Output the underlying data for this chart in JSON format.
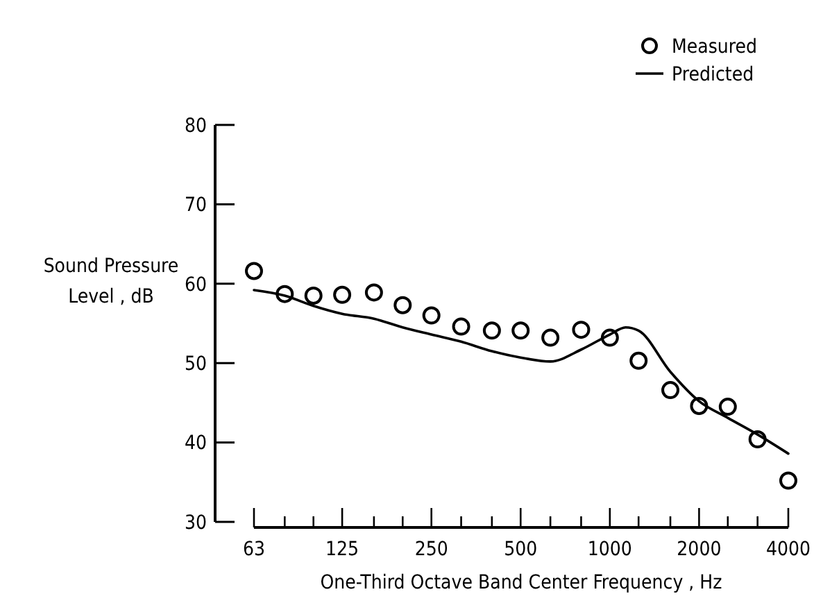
{
  "chart_data": {
    "type": "scatter",
    "xlabel": "One-Third Octave Band Center Frequency , Hz",
    "ylabel": "Sound Pressure Level , dB",
    "log": "x",
    "xlim": [
      63,
      4000
    ],
    "ylim": [
      30,
      80
    ],
    "yticks": [
      30,
      40,
      50,
      60,
      70,
      80
    ],
    "xticks": [
      63,
      {
        "value": 80,
        "label": null
      },
      {
        "value": 100,
        "label": null
      },
      125,
      {
        "value": 160,
        "label": null
      },
      {
        "value": 200,
        "label": null
      },
      250,
      {
        "value": 315,
        "label": null
      },
      {
        "value": 400,
        "label": null
      },
      500,
      {
        "value": 630,
        "label": null
      },
      {
        "value": 800,
        "label": null
      },
      1000,
      {
        "value": 1250,
        "label": null
      },
      {
        "value": 1600,
        "label": null
      },
      2000,
      {
        "value": 2500,
        "label": null
      },
      {
        "value": 3150,
        "label": null
      },
      4000
    ],
    "legend": "top right",
    "grid": false,
    "series": [
      {
        "name": "Measured",
        "marker": "circle",
        "color": "#000000",
        "x": [
          63,
          80,
          100,
          125,
          160,
          200,
          250,
          315,
          400,
          500,
          630,
          800,
          1000,
          1250,
          1600,
          2000,
          2500,
          3150,
          4000
        ],
        "values": [
          61.6,
          58.7,
          58.5,
          58.6,
          58.9,
          57.3,
          56.0,
          54.6,
          54.1,
          54.1,
          53.2,
          54.2,
          53.2,
          50.3,
          46.6,
          44.6,
          44.5,
          40.4,
          35.2
        ]
      },
      {
        "name": "Predicted",
        "type": "line",
        "line_style": "solid",
        "color": "#000000",
        "x": [
          63,
          80,
          100,
          125,
          160,
          200,
          250,
          315,
          400,
          500,
          630,
          800,
          1000,
          1130,
          1250,
          1600,
          2000,
          2500,
          3150,
          4000
        ],
        "values": [
          59.2,
          58.5,
          57.2,
          56.2,
          55.6,
          54.5,
          53.6,
          52.7,
          51.5,
          50.7,
          50.2,
          51.7,
          53.6,
          54.5,
          54.1,
          48.9,
          45.2,
          43.1,
          41.0,
          38.6
        ]
      }
    ]
  }
}
